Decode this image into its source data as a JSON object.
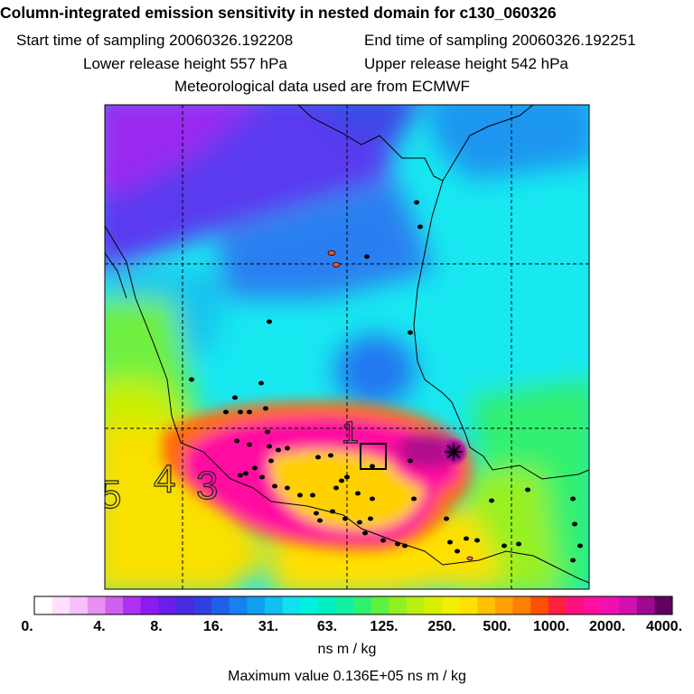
{
  "header": {
    "title": "Column-integrated emission sensitivity in nested domain for c130_060326",
    "start_label": "Start time of sampling 20060326.192208",
    "end_label": "End time of sampling 20060326.192251",
    "lower_label": "Lower release height  557 hPa",
    "upper_label": "Upper release height  542 hPa",
    "met_label": "Meteorological data used are from ECMWF"
  },
  "map": {
    "contour_labels": [
      "5",
      "4",
      "3",
      "1"
    ]
  },
  "colorbar": {
    "ticks": [
      "0.",
      "4.",
      "8.",
      "16.",
      "31.",
      "63.",
      "125.",
      "250.",
      "500.",
      "1000.",
      "2000.",
      "4000."
    ],
    "colors": [
      "#ffffff",
      "#ffe0ff",
      "#f8c0f8",
      "#e890f0",
      "#d060f0",
      "#b030f0",
      "#8a1cf0",
      "#6a1ee8",
      "#4a2ae0",
      "#3040e0",
      "#2060e8",
      "#1880f0",
      "#10a0f0",
      "#10c0f0",
      "#10e0f0",
      "#00f0e0",
      "#00f0c0",
      "#10f0a0",
      "#30f070",
      "#60f040",
      "#90f020",
      "#b8f010",
      "#d8f000",
      "#f0f000",
      "#ffe000",
      "#ffc000",
      "#ffa000",
      "#ff8000",
      "#ff5000",
      "#ff2040",
      "#ff1080",
      "#ff10a0",
      "#f010b0",
      "#d010b0",
      "#a00890",
      "#600060"
    ],
    "unit": "ns m / kg"
  },
  "footer": {
    "max_value": "Maximum value  0.136E+05 ns m / kg"
  }
}
